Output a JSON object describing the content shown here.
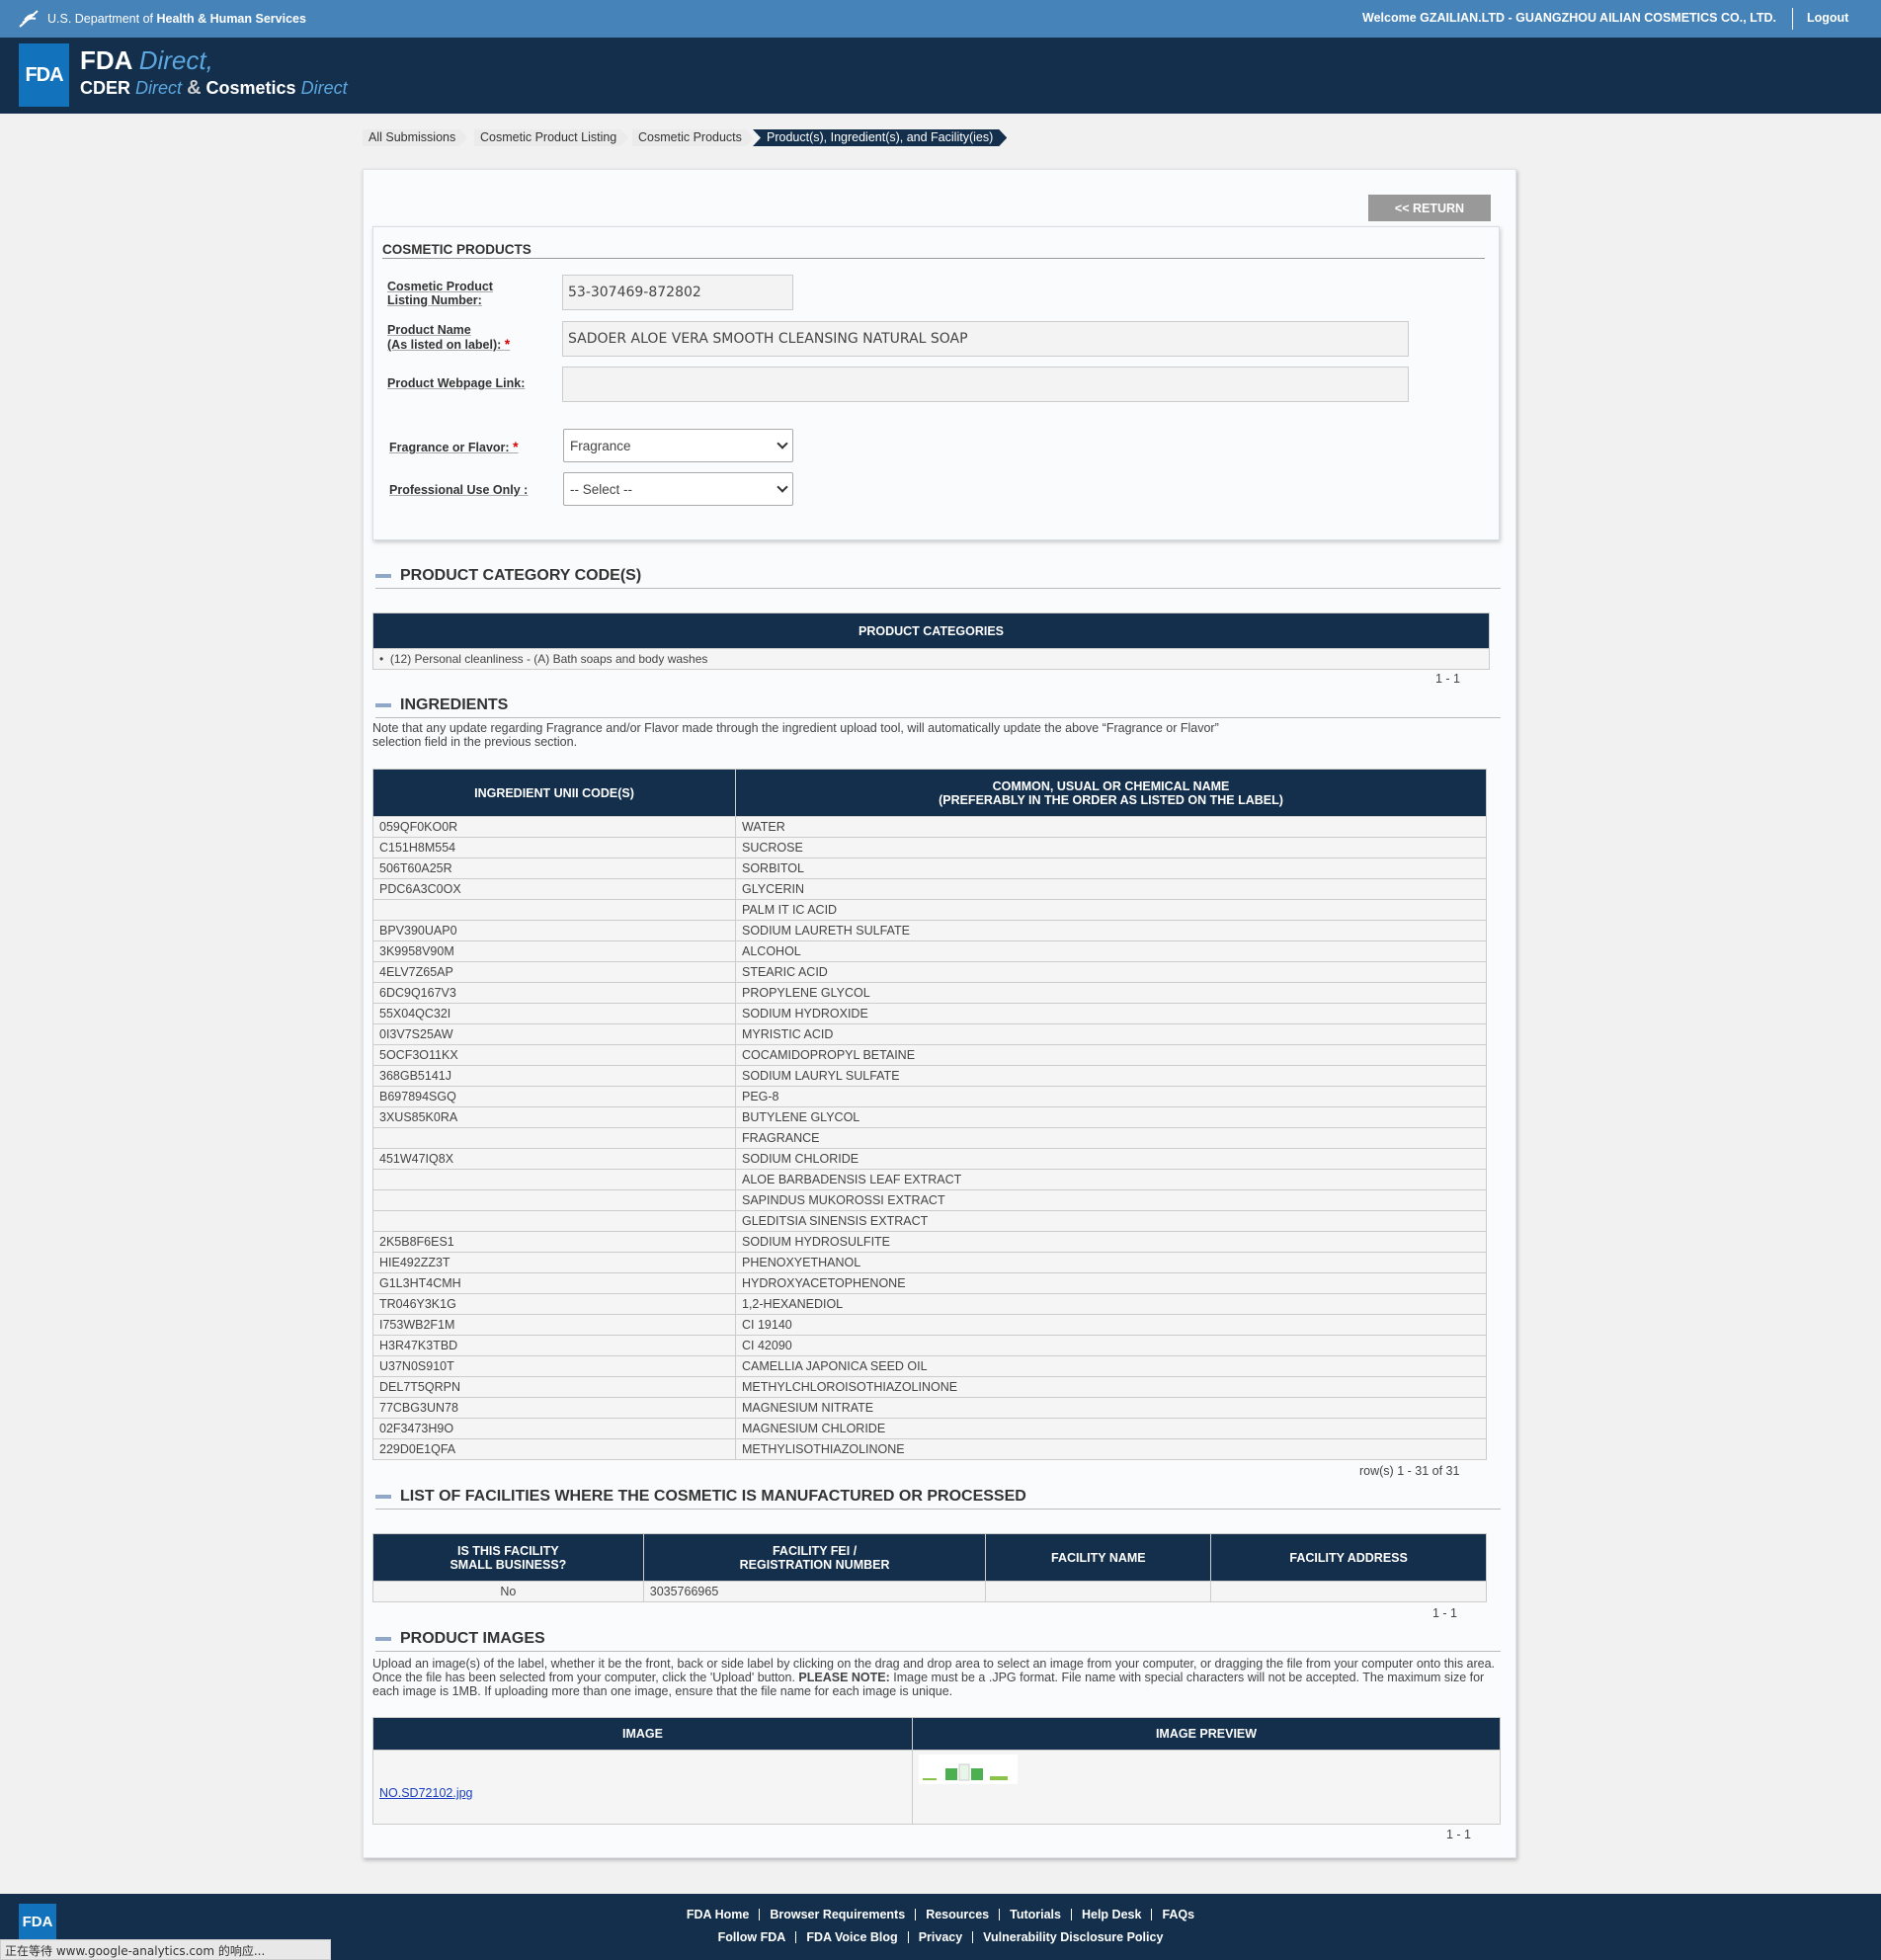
{
  "top_bar": {
    "agency_prefix": "U.S. Department of",
    "agency_name": "Health & Human Services",
    "welcome": "Welcome GZAILIAN.LTD - GUANGZHOU AILIAN COSMETICS CO., LTD.",
    "logout": "Logout"
  },
  "header": {
    "logo": "FDA",
    "fda": "FDA",
    "fda_direct": "Direct,",
    "cder": "CDER",
    "cder_direct": "Direct",
    "amp": "&",
    "cosmetics": "Cosmetics",
    "cosmetics_direct": "Direct"
  },
  "breadcrumb": [
    "All Submissions",
    "Cosmetic Product Listing",
    "Cosmetic Products",
    "Product(s), Ingredient(s), and Facility(ies)"
  ],
  "return_button": "<< RETURN",
  "required_mark": "*",
  "cosmetic_products": {
    "title": "COSMETIC PRODUCTS",
    "listing_number": {
      "label": "Cosmetic Product Listing Number:",
      "value": "53-307469-872802"
    },
    "product_name": {
      "label": [
        "Product Name",
        "(As listed on label):"
      ],
      "value": "SADOER ALOE VERA SMOOTH CLEANSING NATURAL SOAP"
    },
    "webpage_link": {
      "label": "Product Webpage Link:"
    },
    "fragrance": {
      "label": "Fragrance or Flavor:",
      "value": "Fragrance"
    },
    "professional_use": {
      "label": "Professional Use Only :",
      "value": "-- Select --"
    }
  },
  "product_category": {
    "title": "PRODUCT CATEGORY CODE(S)",
    "header": "PRODUCT CATEGORIES",
    "items": [
      "(12) Personal cleanliness - (A) Bath soaps and body washes"
    ],
    "pager": "1 - 1"
  },
  "ingredients": {
    "title": "INGREDIENTS",
    "note": "Note that any update regarding Fragrance and/or Flavor made through the ingredient upload tool, will automatically update the above “Fragrance or Flavor” selection field in the previous section.",
    "headers": [
      "INGREDIENT UNII CODE(S)",
      [
        "COMMON, USUAL OR CHEMICAL NAME",
        "(PREFERABLY IN THE ORDER AS LISTED ON THE LABEL)"
      ]
    ],
    "rows": [
      [
        "059QF0KO0R",
        "WATER"
      ],
      [
        "C151H8M554",
        "SUCROSE"
      ],
      [
        "506T60A25R",
        "SORBITOL"
      ],
      [
        "PDC6A3C0OX",
        "GLYCERIN"
      ],
      [
        null,
        "PALM IT IC ACID"
      ],
      [
        "BPV390UAP0",
        "SODIUM LAURETH SULFATE"
      ],
      [
        "3K9958V90M",
        "ALCOHOL"
      ],
      [
        "4ELV7Z65AP",
        "STEARIC ACID"
      ],
      [
        "6DC9Q167V3",
        "PROPYLENE GLYCOL"
      ],
      [
        "55X04QC32I",
        "SODIUM HYDROXIDE"
      ],
      [
        "0I3V7S25AW",
        "MYRISTIC ACID"
      ],
      [
        "5OCF3O11KX",
        "COCAMIDOPROPYL BETAINE"
      ],
      [
        "368GB5141J",
        "SODIUM LAURYL SULFATE"
      ],
      [
        "B697894SGQ",
        "PEG-8"
      ],
      [
        "3XUS85K0RA",
        "BUTYLENE GLYCOL"
      ],
      [
        null,
        "FRAGRANCE"
      ],
      [
        "451W47IQ8X",
        "SODIUM CHLORIDE"
      ],
      [
        null,
        "ALOE BARBADENSIS LEAF EXTRACT"
      ],
      [
        null,
        "SAPINDUS MUKOROSSI EXTRACT"
      ],
      [
        null,
        "GLEDITSIA SINENSIS EXTRACT"
      ],
      [
        "2K5B8F6ES1",
        "SODIUM HYDROSULFITE"
      ],
      [
        "HIE492ZZ3T",
        "PHENOXYETHANOL"
      ],
      [
        "G1L3HT4CMH",
        "HYDROXYACETOPHENONE"
      ],
      [
        "TR046Y3K1G",
        "1,2-HEXANEDIOL"
      ],
      [
        "I753WB2F1M",
        "CI 19140"
      ],
      [
        "H3R47K3TBD",
        "CI 42090"
      ],
      [
        "U37N0S910T",
        "CAMELLIA JAPONICA SEED OIL"
      ],
      [
        "DEL7T5QRPN",
        "METHYLCHLOROISOTHIAZOLINONE"
      ],
      [
        "77CBG3UN78",
        "MAGNESIUM NITRATE"
      ],
      [
        "02F3473H9O",
        "MAGNESIUM CHLORIDE"
      ],
      [
        "229D0E1QFA",
        "METHYLISOTHIAZOLINONE"
      ]
    ],
    "pager": "row(s) 1 - 31 of 31"
  },
  "facilities": {
    "title": "LIST OF FACILITIES WHERE THE COSMETIC IS MANUFACTURED OR PROCESSED",
    "headers": [
      [
        "IS THIS FACILITY",
        "SMALL BUSINESS?"
      ],
      [
        "FACILITY FEI /",
        "REGISTRATION NUMBER"
      ],
      [
        "FACILITY NAME"
      ],
      [
        "FACILITY ADDRESS"
      ]
    ],
    "rows": [
      [
        "No",
        "3035766965",
        null,
        null
      ]
    ],
    "pager": "1 - 1"
  },
  "product_images": {
    "title": "PRODUCT IMAGES",
    "text_before": "Upload an image(s) of the label, whether it be the front, back or side label by clicking on the drag and drop area to select an image from your computer, or dragging the file from your computer onto this area. Once the file has been selected from your computer, click the 'Upload' button.",
    "note_label": "PLEASE NOTE:",
    "text_after": "Image must be a .JPG format. File name with special characters will not be accepted. The maximum size for each image is 1MB. If uploading more than one image, ensure that the file name for each image is unique.",
    "headers": [
      "IMAGE",
      "IMAGE PREVIEW"
    ],
    "file": "NO.SD72102.jpg",
    "pager": "1 - 1"
  },
  "footer": {
    "logo": "FDA",
    "links_row1": [
      "FDA Home",
      "Browser Requirements",
      "Resources",
      "Tutorials",
      "Help Desk",
      "FAQs"
    ],
    "links_row2": [
      "Follow FDA",
      "FDA Voice Blog",
      "Privacy",
      "Vulnerability Disclosure Policy"
    ]
  },
  "status_bar": "正在等待 www.google-analytics.com 的响应..."
}
